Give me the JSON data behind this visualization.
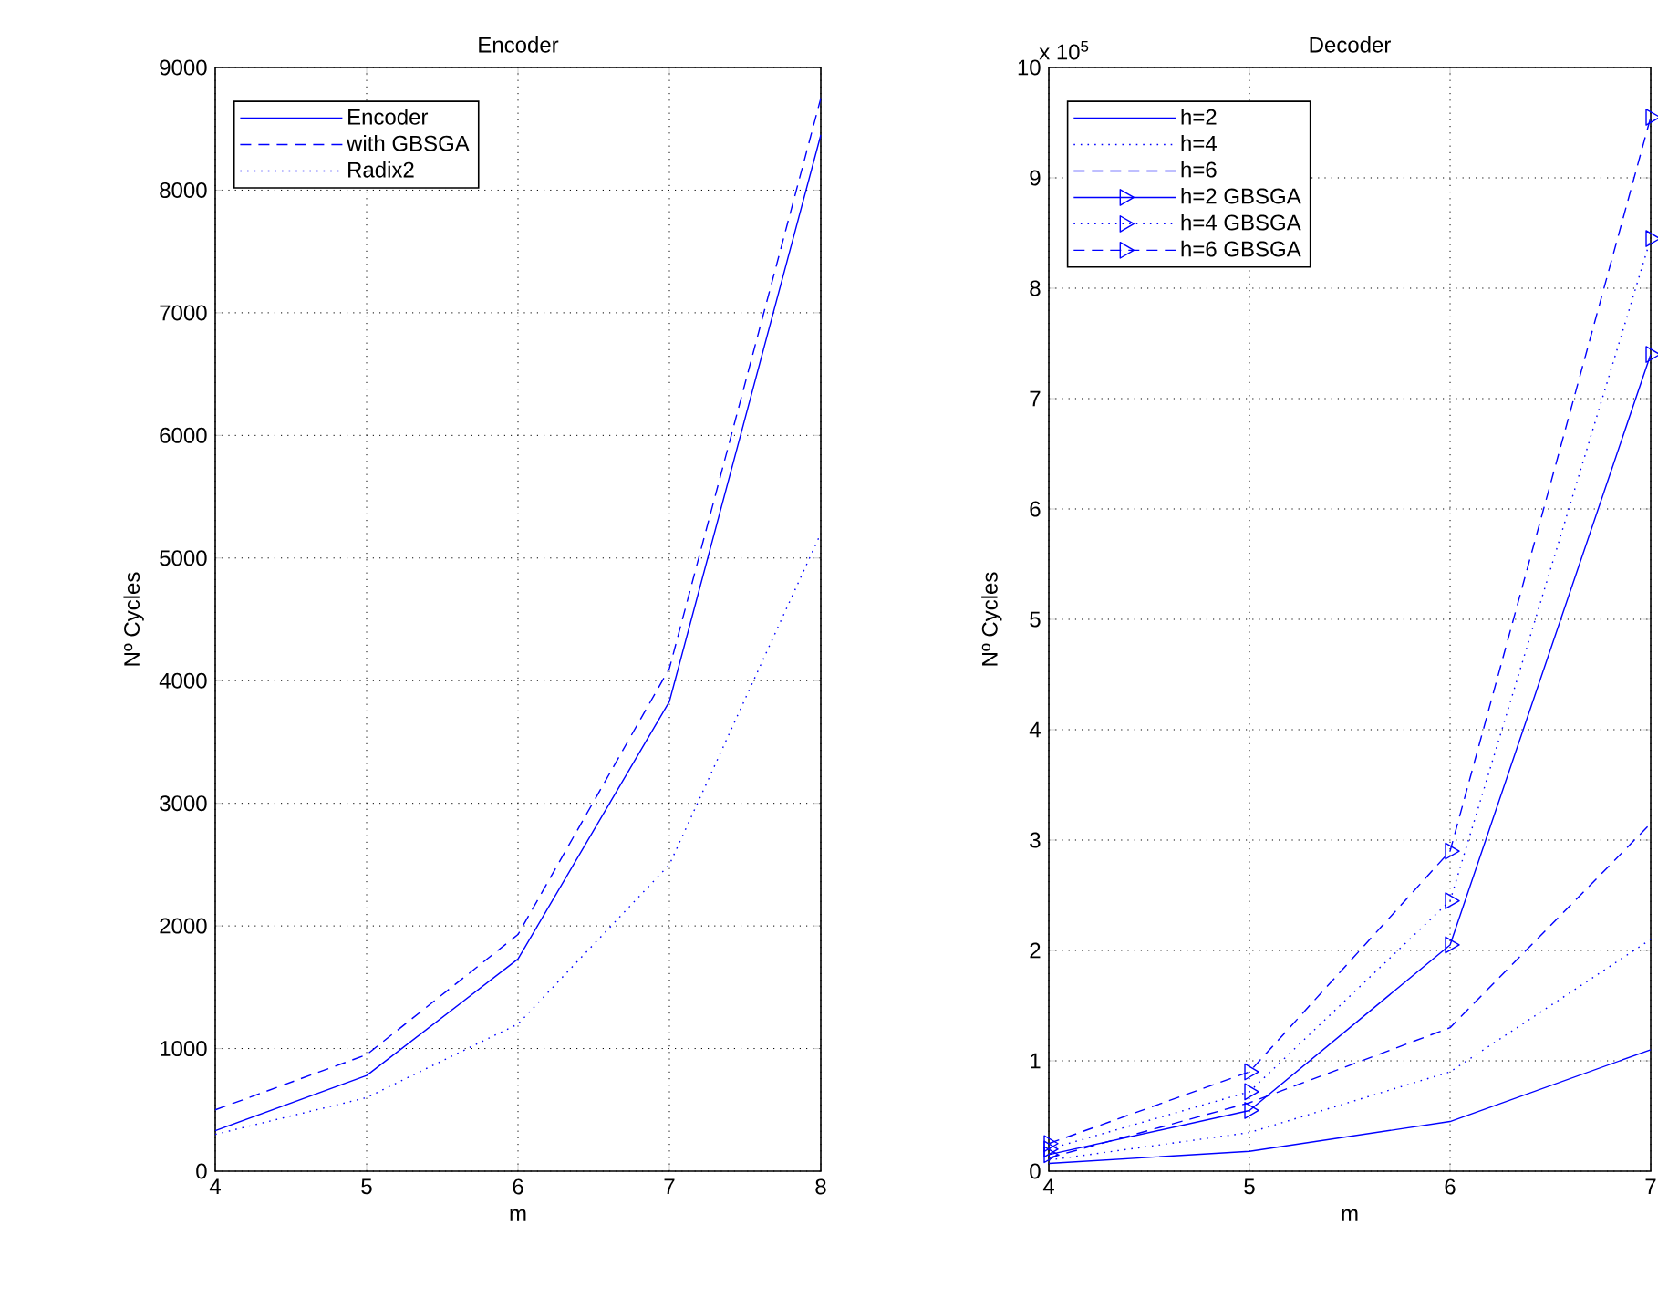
{
  "chart_data": [
    {
      "type": "line",
      "title": "Encoder",
      "xlabel": "m",
      "ylabel": "Nº Cycles",
      "x": [
        4,
        5,
        6,
        7,
        8
      ],
      "series": [
        {
          "name": "Encoder",
          "color": "#0000ff",
          "line_style": "solid",
          "values": [
            330,
            780,
            1730,
            3830,
            8450
          ]
        },
        {
          "name": "with GBSGA",
          "color": "#0000ff",
          "line_style": "dashed",
          "values": [
            500,
            950,
            1930,
            4100,
            8750
          ]
        },
        {
          "name": "Radix2",
          "color": "#0000ff",
          "line_style": "dotted",
          "values": [
            300,
            600,
            1200,
            2500,
            5200
          ]
        }
      ],
      "xlim": [
        4,
        8
      ],
      "xticks": [
        4,
        5,
        6,
        7,
        8
      ],
      "ylim": [
        0,
        9000
      ],
      "yticks": [
        0,
        1000,
        2000,
        3000,
        4000,
        5000,
        6000,
        7000,
        8000,
        9000
      ],
      "grid": true,
      "legend": "top left",
      "marker": "none"
    },
    {
      "type": "line",
      "title": "Decoder",
      "xlabel": "m",
      "ylabel": "Nº Cycles",
      "annotations": [
        "x 10$^{5}$"
      ],
      "x": [
        4,
        5,
        6,
        7
      ],
      "series": [
        {
          "name": "h=2",
          "color": "#0000ff",
          "line_style": "solid",
          "marker": "none",
          "values": [
            0.07,
            0.18,
            0.45,
            1.1
          ]
        },
        {
          "name": "h=4",
          "color": "#0000ff",
          "line_style": "dotted",
          "marker": "none",
          "values": [
            0.1,
            0.35,
            0.9,
            2.1
          ]
        },
        {
          "name": "h=6",
          "color": "#0000ff",
          "line_style": "dashed",
          "marker": "none",
          "values": [
            0.12,
            0.62,
            1.3,
            3.15
          ]
        },
        {
          "name": "h=2 GBSGA",
          "color": "#0000ff",
          "line_style": "solid",
          "marker": "triangle",
          "values": [
            0.15,
            0.55,
            2.05,
            7.4
          ]
        },
        {
          "name": "h=4 GBSGA",
          "color": "#0000ff",
          "line_style": "dotted",
          "marker": "triangle",
          "values": [
            0.2,
            0.72,
            2.45,
            8.45
          ]
        },
        {
          "name": "h=6 GBSGA",
          "color": "#0000ff",
          "line_style": "dashed",
          "marker": "triangle",
          "values": [
            0.25,
            0.9,
            2.9,
            9.55
          ]
        }
      ],
      "xlim": [
        4,
        7
      ],
      "xticks": [
        4,
        5,
        6,
        7
      ],
      "ylim": [
        0,
        10
      ],
      "yticks": [
        0,
        1,
        2,
        3,
        4,
        5,
        6,
        7,
        8,
        9,
        10
      ],
      "grid": true,
      "legend": "top left"
    }
  ]
}
